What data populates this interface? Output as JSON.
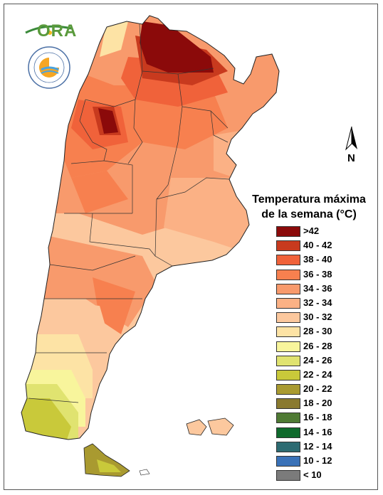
{
  "logos": {
    "ora_text": "ORA",
    "smn_ring_text": "SERVICIO METEOROLÓGICO NACIONAL",
    "smn_country_text": "ARGENTINA"
  },
  "north_arrow": {
    "label": "N"
  },
  "legend": {
    "title_line1": "Temperatura máxima",
    "title_line2": "de la semana (°C)",
    "items": [
      {
        "label": ">42",
        "color": "#8b0a0a"
      },
      {
        "label": "40 - 42",
        "color": "#c83a1e"
      },
      {
        "label": "38 - 40",
        "color": "#f0623a"
      },
      {
        "label": "36 - 38",
        "color": "#f7804f"
      },
      {
        "label": "34 - 36",
        "color": "#f89a6c"
      },
      {
        "label": "32 - 34",
        "color": "#fbb185"
      },
      {
        "label": "30 - 32",
        "color": "#fcc89e"
      },
      {
        "label": "28 - 30",
        "color": "#fde3a5"
      },
      {
        "label": "26 - 28",
        "color": "#f8f59c"
      },
      {
        "label": "24 - 26",
        "color": "#e0e370"
      },
      {
        "label": "22 - 24",
        "color": "#c9c93a"
      },
      {
        "label": "20 - 22",
        "color": "#a99a30"
      },
      {
        "label": "18 - 20",
        "color": "#8a7a2f"
      },
      {
        "label": "16 - 18",
        "color": "#4f7a34"
      },
      {
        "label": "14 - 16",
        "color": "#0f6a2c"
      },
      {
        "label": "12 - 14",
        "color": "#2c6b72"
      },
      {
        "label": "10 - 12",
        "color": "#3a72b8"
      },
      {
        "label": "< 10",
        "color": "#7b7b7b"
      }
    ]
  }
}
